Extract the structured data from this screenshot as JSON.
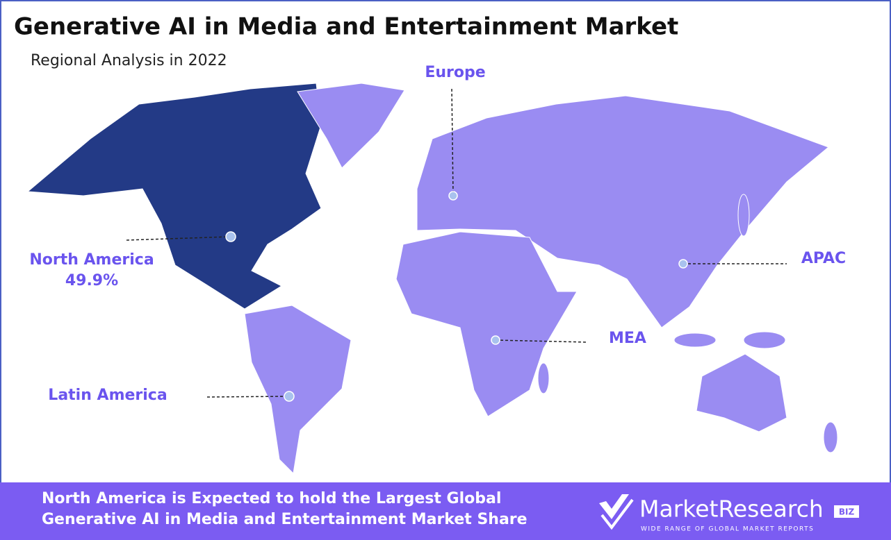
{
  "header": {
    "title": "Generative AI in Media and Entertainment Market",
    "subtitle": "Regional Analysis in 2022"
  },
  "regions": [
    {
      "name": "North America",
      "share": "49.9%"
    },
    {
      "name": "Europe"
    },
    {
      "name": "APAC"
    },
    {
      "name": "MEA"
    },
    {
      "name": "Latin America"
    }
  ],
  "footer": {
    "lines": [
      "North America is Expected to hold the Largest Global",
      "Generative AI in Media and Entertainment Market Share"
    ]
  },
  "logo": {
    "brand": "MarketResearch",
    "suffix": "BIZ",
    "tagline": "WIDE RANGE OF GLOBAL MARKET REPORTS"
  }
}
